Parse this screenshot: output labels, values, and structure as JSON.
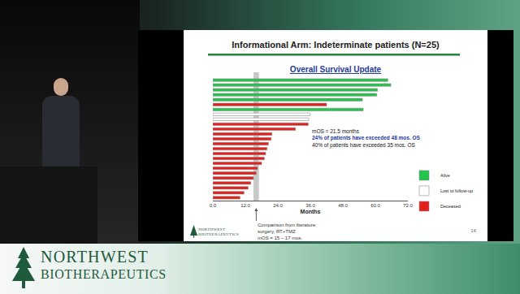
{
  "chart_data": {
    "type": "bar",
    "orientation": "horizontal",
    "title": "Informational Arm: Indeterminate patients (N=25)",
    "subtitle": "Overall Survival Update",
    "xlabel": "Months",
    "categories": [
      null,
      null,
      null,
      null,
      null,
      null,
      null,
      null,
      null,
      null,
      null,
      null,
      null,
      null,
      null,
      null,
      null,
      null,
      null,
      null,
      null,
      null,
      null,
      null,
      null
    ],
    "series": [
      {
        "name": "Alive",
        "color": "#22c44a",
        "values": [
          64.6,
          65.7,
          60.8,
          60.5,
          55.2,
          null,
          55.5,
          null,
          null,
          null,
          null,
          null,
          null,
          null,
          null,
          null,
          null,
          null,
          null,
          null,
          null,
          null,
          null,
          null,
          null
        ]
      },
      {
        "name": "Lost to follow-up",
        "color": "#ffffff",
        "values": [
          null,
          null,
          null,
          null,
          null,
          null,
          null,
          35.9,
          35.4,
          null,
          null,
          null,
          null,
          null,
          null,
          null,
          null,
          null,
          null,
          null,
          null,
          null,
          null,
          null,
          null
        ]
      },
      {
        "name": "Deceased",
        "color": "#e3201b",
        "values": [
          null,
          null,
          null,
          null,
          null,
          42.0,
          null,
          null,
          null,
          35.2,
          30.5,
          21.8,
          21.5,
          20.5,
          20.0,
          19.5,
          19.0,
          18.0,
          16.5,
          16.0,
          15.0,
          14.0,
          13.0,
          11.5,
          10.0
        ]
      }
    ],
    "xlim": [
      0,
      72
    ],
    "xticks": [
      {
        "value": 0,
        "label": "0.0"
      },
      {
        "value": 12,
        "label": "12.0"
      },
      {
        "value": 24,
        "label": "24.0"
      },
      {
        "value": 36,
        "label": "36.0"
      },
      {
        "value": 48,
        "label": "48.0"
      },
      {
        "value": 60,
        "label": "60.0"
      },
      {
        "value": 72,
        "label": "72.0"
      }
    ],
    "grid": false,
    "legend": "right",
    "tick_labels": "x",
    "annotations": [
      {
        "text": "mOS = 21.5 months"
      },
      {
        "text": "24% of patients have exceeded 48 mos. OS",
        "color": "#1f3c9e"
      },
      {
        "text": "40% of patients have exceeded 35 mos. OS"
      }
    ],
    "reference_band": {
      "xlim": [
        15,
        17
      ],
      "color": "#c8c8c8",
      "label": [
        "Comparison from literature:",
        "surgery, RT+TMZ",
        "mOS = 15 – 17 mos."
      ]
    }
  },
  "slide": {
    "logo": [
      "NORTHWEST",
      "BIOTHERAPEUTICS"
    ],
    "page_number": "16"
  },
  "banner": {
    "logo": [
      "NORTHWEST",
      "BIOTHERAPEUTICS"
    ]
  }
}
